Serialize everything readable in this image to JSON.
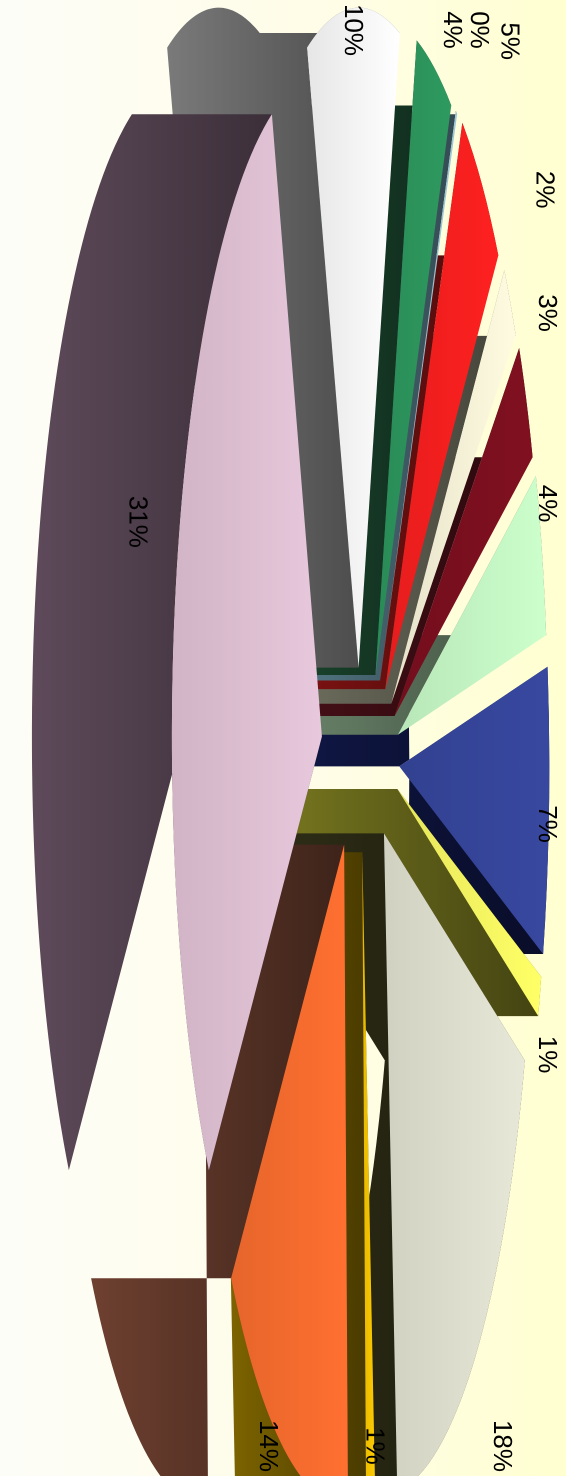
{
  "chart_data": {
    "type": "pie",
    "title": "",
    "orientation": "rotated-90-clockwise",
    "style": "3d-exploded",
    "legend": "none",
    "slices": [
      {
        "value": 10,
        "label": "10%",
        "color": "#ffffff",
        "side": "#7a7a7a"
      },
      {
        "value": 4,
        "label": "4%",
        "color": "#2e9a5f",
        "side": "#1d4d32"
      },
      {
        "value": 0,
        "label": "0%",
        "color": "#9ec8d8",
        "side": "#5e8796"
      },
      {
        "value": 5,
        "label": "5%",
        "color": "#ff2020",
        "side": "#8a1414"
      },
      {
        "value": 2,
        "label": "2%",
        "color": "#fffbe0",
        "side": "#777766"
      },
      {
        "value": 3,
        "label": "3%",
        "color": "#801020",
        "side": "#4a1018"
      },
      {
        "value": 4,
        "label": "4%",
        "color": "#ccffcc",
        "side": "#6f8a6f"
      },
      {
        "value": 7,
        "label": "7%",
        "color": "#3848a0",
        "side": "#101848"
      },
      {
        "value": 1,
        "label": "1%",
        "color": "#ffff66",
        "side": "#7a7a20"
      },
      {
        "value": 18,
        "label": "18%",
        "color": "#e8e8d8",
        "side": "#303018"
      },
      {
        "value": 1,
        "label": "1%",
        "color": "#ffcc00",
        "side": "#806600"
      },
      {
        "value": 14,
        "label": "14%",
        "color": "#ff7030",
        "side": "#6e4030"
      },
      {
        "value": 31,
        "label": "31%",
        "color": "#e8c8dc",
        "side": "#5e4a5a"
      }
    ]
  }
}
